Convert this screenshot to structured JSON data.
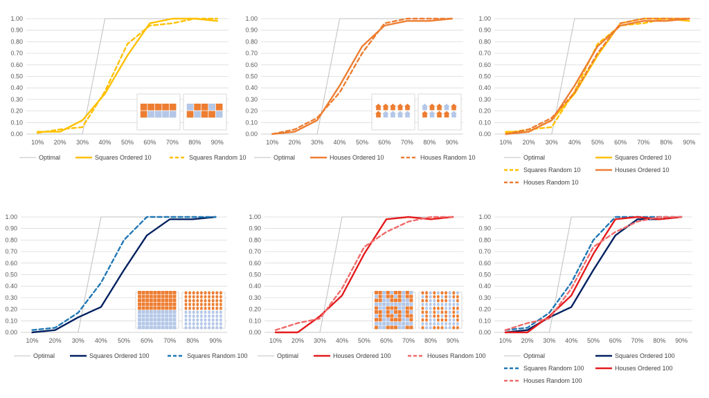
{
  "colors": {
    "optimal": "#bfbfbf",
    "squares_10": "#ffc000",
    "houses_10": "#ed7d31",
    "squares_100": "#002060",
    "squares_random_100": "#1f77b4",
    "houses_100": "#e31a1c",
    "houses_random_100": "#f06a6a",
    "grid": "#d9d9d9",
    "inset_orange": "#ed7d31",
    "inset_blue": "#b4c7e7"
  },
  "chart_data": [
    {
      "type": "line",
      "categories": [
        "10%",
        "20%",
        "30%",
        "40%",
        "50%",
        "60%",
        "70%",
        "80%",
        "90%"
      ],
      "ylim": [
        0,
        1
      ],
      "yticks": [
        "0.00",
        "0.10",
        "0.20",
        "0.30",
        "0.40",
        "0.50",
        "0.60",
        "0.70",
        "0.80",
        "0.90",
        "1.00"
      ],
      "series": [
        {
          "name": "Optimal",
          "style": "optimal",
          "values": [
            0,
            0,
            0,
            1,
            1,
            1,
            1,
            1,
            1
          ]
        },
        {
          "name": "Squares Ordered 10",
          "style": "squares_10",
          "dash": false,
          "values": [
            0.02,
            0.02,
            0.12,
            0.35,
            0.68,
            0.96,
            1.0,
            1.0,
            0.98
          ]
        },
        {
          "name": "Squares Random 10",
          "style": "squares_10",
          "dash": true,
          "values": [
            0.01,
            0.04,
            0.06,
            0.37,
            0.78,
            0.94,
            0.96,
            1.0,
            1.0
          ]
        }
      ],
      "legend_rows": [
        [
          0,
          1,
          2
        ]
      ],
      "inset": "squares10"
    },
    {
      "type": "line",
      "categories": [
        "10%",
        "20%",
        "30%",
        "40%",
        "50%",
        "60%",
        "70%",
        "80%",
        "90%"
      ],
      "ylim": [
        0,
        1
      ],
      "yticks": [
        "0.00",
        "0.10",
        "0.20",
        "0.30",
        "0.40",
        "0.50",
        "0.60",
        "0.70",
        "0.80",
        "0.90",
        "1.00"
      ],
      "series": [
        {
          "name": "Optimal",
          "style": "optimal",
          "values": [
            0,
            0,
            0,
            1,
            1,
            1,
            1,
            1,
            1
          ]
        },
        {
          "name": "Houses Ordered 10",
          "style": "houses_10",
          "dash": false,
          "values": [
            0.0,
            0.02,
            0.12,
            0.42,
            0.76,
            0.94,
            0.98,
            0.98,
            1.0
          ]
        },
        {
          "name": "Houses Random 10",
          "style": "houses_10",
          "dash": true,
          "values": [
            0.0,
            0.04,
            0.14,
            0.36,
            0.7,
            0.96,
            1.0,
            1.0,
            1.0
          ]
        }
      ],
      "legend_rows": [
        [
          0,
          1,
          2
        ]
      ],
      "inset": "houses10"
    },
    {
      "type": "line",
      "categories": [
        "10%",
        "20%",
        "30%",
        "40%",
        "50%",
        "60%",
        "70%",
        "80%",
        "90%"
      ],
      "ylim": [
        0,
        1
      ],
      "yticks": [
        "0.00",
        "0.10",
        "0.20",
        "0.30",
        "0.40",
        "0.50",
        "0.60",
        "0.70",
        "0.80",
        "0.90",
        "1.00"
      ],
      "series": [
        {
          "name": "Optimal",
          "style": "optimal",
          "values": [
            0,
            0,
            0,
            1,
            1,
            1,
            1,
            1,
            1
          ]
        },
        {
          "name": "Squares Ordered 10",
          "style": "squares_10",
          "dash": false,
          "values": [
            0.02,
            0.02,
            0.12,
            0.35,
            0.68,
            0.96,
            1.0,
            1.0,
            0.98
          ]
        },
        {
          "name": "Squares Random 10",
          "style": "squares_10",
          "dash": true,
          "values": [
            0.01,
            0.04,
            0.06,
            0.37,
            0.78,
            0.94,
            0.96,
            1.0,
            1.0
          ]
        },
        {
          "name": "Houses Ordered 10",
          "style": "houses_10",
          "dash": false,
          "values": [
            0.0,
            0.02,
            0.12,
            0.42,
            0.76,
            0.94,
            0.98,
            0.98,
            1.0
          ]
        },
        {
          "name": "Houses Random 10",
          "style": "houses_10",
          "dash": true,
          "values": [
            0.0,
            0.04,
            0.14,
            0.36,
            0.7,
            0.96,
            1.0,
            1.0,
            1.0
          ]
        }
      ],
      "legend_rows": [
        [
          0,
          1
        ],
        [
          2,
          3
        ],
        [
          4
        ]
      ],
      "inset": null
    },
    {
      "type": "line",
      "categories": [
        "10%",
        "20%",
        "30%",
        "40%",
        "50%",
        "60%",
        "70%",
        "80%",
        "90%"
      ],
      "ylim": [
        0,
        1
      ],
      "yticks": [
        "0.00",
        "0.10",
        "0.20",
        "0.30",
        "0.40",
        "0.50",
        "0.60",
        "0.70",
        "0.80",
        "0.90",
        "1.00"
      ],
      "series": [
        {
          "name": "Optimal",
          "style": "optimal",
          "values": [
            0,
            0,
            0,
            1,
            1,
            1,
            1,
            1,
            1
          ]
        },
        {
          "name": "Squares Ordered 100",
          "style": "squares_100",
          "dash": false,
          "values": [
            0.0,
            0.02,
            0.13,
            0.22,
            0.54,
            0.84,
            0.98,
            0.98,
            1.0
          ]
        },
        {
          "name": "Squares Random 100",
          "style": "squares_random_100",
          "dash": true,
          "values": [
            0.02,
            0.04,
            0.17,
            0.43,
            0.8,
            1.0,
            1.0,
            1.0,
            1.0
          ]
        }
      ],
      "legend_rows": [
        [
          0,
          1,
          2
        ]
      ],
      "inset": "squares100"
    },
    {
      "type": "line",
      "categories": [
        "10%",
        "20%",
        "30%",
        "40%",
        "50%",
        "60%",
        "70%",
        "80%",
        "90%"
      ],
      "ylim": [
        0,
        1
      ],
      "yticks": [
        "0.00",
        "0.10",
        "0.20",
        "0.30",
        "0.40",
        "0.50",
        "0.60",
        "0.70",
        "0.80",
        "0.90",
        "1.00"
      ],
      "series": [
        {
          "name": "Optimal",
          "style": "optimal",
          "values": [
            0,
            0,
            0,
            1,
            1,
            1,
            1,
            1,
            1
          ]
        },
        {
          "name": "Houses Ordered 100",
          "style": "houses_100",
          "dash": false,
          "values": [
            0.0,
            0.0,
            0.14,
            0.32,
            0.68,
            0.98,
            1.0,
            0.98,
            1.0
          ]
        },
        {
          "name": "Houses Random 100",
          "style": "houses_random_100",
          "dash": true,
          "values": [
            0.02,
            0.08,
            0.12,
            0.38,
            0.74,
            0.87,
            0.96,
            1.0,
            1.0
          ]
        }
      ],
      "legend_rows": [
        [
          0,
          1,
          2
        ]
      ],
      "inset": "houses100"
    },
    {
      "type": "line",
      "categories": [
        "10%",
        "20%",
        "30%",
        "40%",
        "50%",
        "60%",
        "70%",
        "80%",
        "90%"
      ],
      "ylim": [
        0,
        1
      ],
      "yticks": [
        "0.00",
        "0.10",
        "0.20",
        "0.30",
        "0.40",
        "0.50",
        "0.60",
        "0.70",
        "0.80",
        "0.90",
        "1.00"
      ],
      "series": [
        {
          "name": "Optimal",
          "style": "optimal",
          "values": [
            0,
            0,
            0,
            1,
            1,
            1,
            1,
            1,
            1
          ]
        },
        {
          "name": "Squares Ordered 100",
          "style": "squares_100",
          "dash": false,
          "values": [
            0.0,
            0.02,
            0.13,
            0.22,
            0.54,
            0.84,
            0.98,
            0.98,
            1.0
          ]
        },
        {
          "name": "Squares Random 100",
          "style": "squares_random_100",
          "dash": true,
          "values": [
            0.02,
            0.04,
            0.17,
            0.43,
            0.8,
            1.0,
            1.0,
            1.0,
            1.0
          ]
        },
        {
          "name": "Houses Ordered 100",
          "style": "houses_100",
          "dash": false,
          "values": [
            0.0,
            0.0,
            0.14,
            0.32,
            0.68,
            0.98,
            1.0,
            0.98,
            1.0
          ]
        },
        {
          "name": "Houses Random 100",
          "style": "houses_random_100",
          "dash": true,
          "values": [
            0.02,
            0.08,
            0.12,
            0.38,
            0.74,
            0.87,
            0.96,
            1.0,
            1.0
          ]
        }
      ],
      "legend_rows": [
        [
          0,
          1
        ],
        [
          2,
          3
        ],
        [
          4
        ]
      ],
      "inset": null
    }
  ]
}
